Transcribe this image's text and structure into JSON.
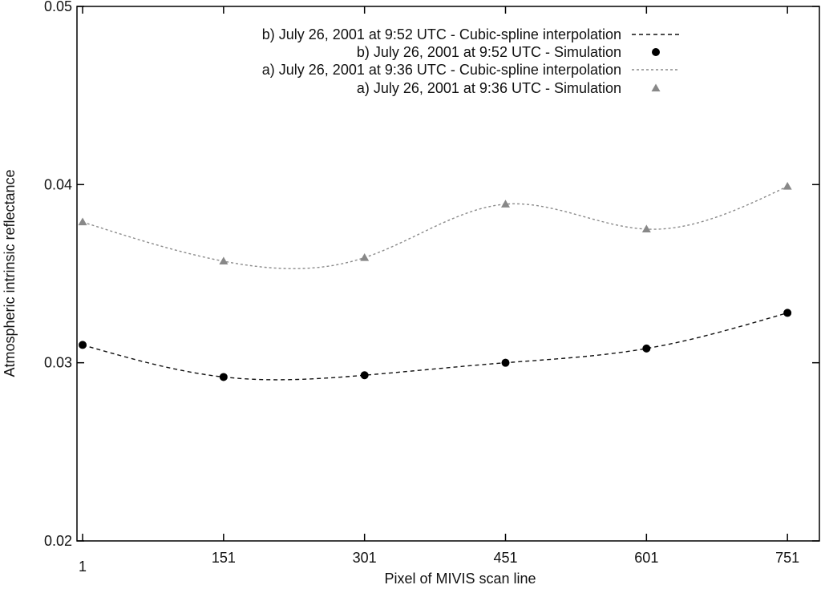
{
  "chart_data": {
    "type": "line",
    "title": "",
    "xlabel": "Pixel of MIVIS scan line",
    "ylabel": "Atmospheric intrinsic reflectance",
    "xlim": [
      -5,
      785
    ],
    "ylim": [
      0.02,
      0.05
    ],
    "x_ticks": [
      1,
      151,
      301,
      451,
      601,
      751
    ],
    "x_tick_labels": [
      "1",
      "151",
      "301",
      "451",
      "601",
      "751"
    ],
    "y_ticks": [
      0.02,
      0.03,
      0.04,
      0.05
    ],
    "y_tick_labels": [
      "0.02",
      "0.03",
      "0.04",
      "0.05"
    ],
    "grid": false,
    "legend_position": "top-right",
    "series": [
      {
        "name": "b) July 26, 2001 at 9:52 UTC - Cubic-spline interpolation",
        "kind": "line",
        "style": "dashed",
        "color": "#111111",
        "based_on": "b) July 26, 2001 at 9:52 UTC - Simulation"
      },
      {
        "name": "b) July 26, 2001 at 9:52 UTC - Simulation",
        "kind": "points",
        "marker": "circle",
        "color": "#000000",
        "x": [
          1,
          151,
          301,
          451,
          601,
          751
        ],
        "y": [
          0.031,
          0.0292,
          0.0293,
          0.03,
          0.0308,
          0.0328
        ]
      },
      {
        "name": "a) July 26, 2001 at 9:36 UTC - Cubic-spline interpolation",
        "kind": "line",
        "style": "dotted",
        "color": "#8a8a8a",
        "based_on": "a) July 26, 2001 at 9:36 UTC - Simulation"
      },
      {
        "name": "a) July 26, 2001 at 9:36 UTC - Simulation",
        "kind": "points",
        "marker": "triangle",
        "color": "#888888",
        "x": [
          1,
          151,
          301,
          451,
          601,
          751
        ],
        "y": [
          0.0379,
          0.0357,
          0.0359,
          0.0389,
          0.0375,
          0.0399
        ]
      }
    ]
  }
}
